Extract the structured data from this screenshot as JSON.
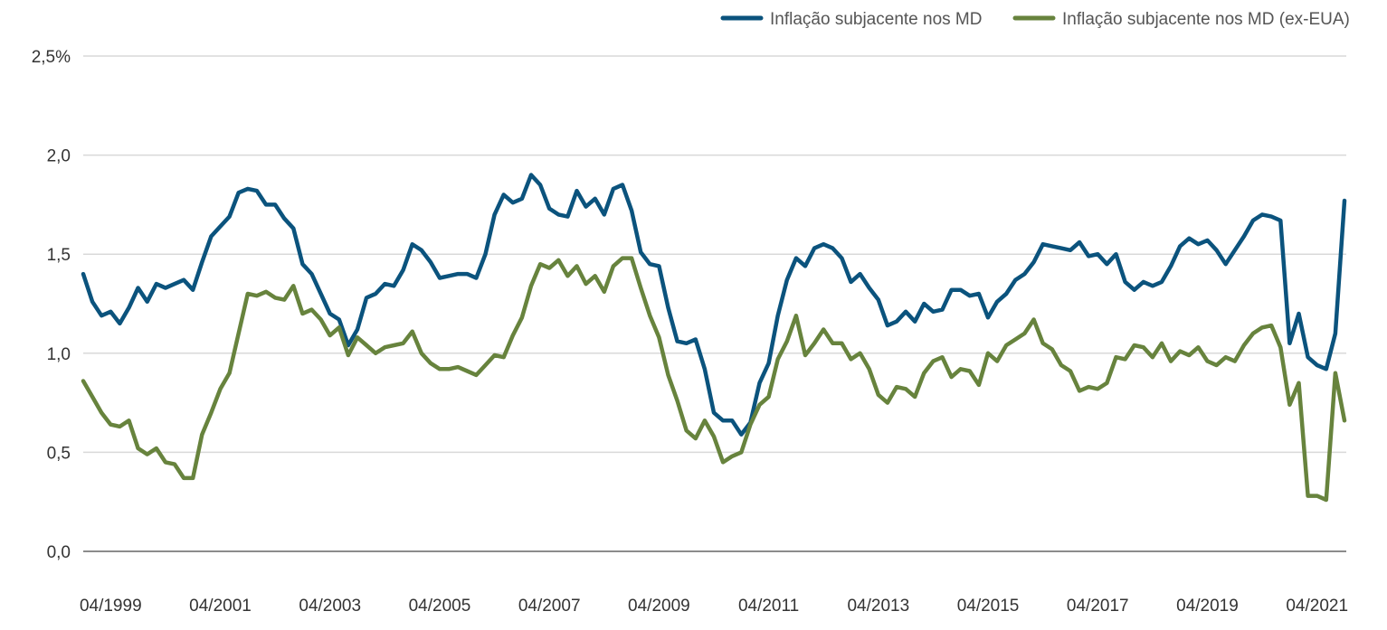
{
  "chart_data": {
    "type": "line",
    "title": "",
    "xlabel": "",
    "ylabel": "",
    "ylim": [
      0,
      2.5
    ],
    "y_ticks": [
      "0,0",
      "0,5",
      "1,0",
      "1,5",
      "2,0",
      "2,5%"
    ],
    "y_tick_values": [
      0,
      0.5,
      1.0,
      1.5,
      2.0,
      2.5
    ],
    "x_ticks": [
      "04/1999",
      "04/2001",
      "04/2003",
      "04/2005",
      "04/2007",
      "04/2009",
      "04/2011",
      "04/2013",
      "04/2015",
      "04/2017",
      "04/2019",
      "04/2021"
    ],
    "grid": true,
    "legend_position": "top-right",
    "x": [
      "10/1998",
      "12/1998",
      "02/1999",
      "04/1999",
      "06/1999",
      "08/1999",
      "10/1999",
      "12/1999",
      "02/2000",
      "04/2000",
      "06/2000",
      "08/2000",
      "10/2000",
      "12/2000",
      "02/2001",
      "04/2001",
      "06/2001",
      "08/2001",
      "10/2001",
      "12/2001",
      "02/2002",
      "04/2002",
      "06/2002",
      "08/2002",
      "10/2002",
      "12/2002",
      "02/2003",
      "04/2003",
      "06/2003",
      "08/2003",
      "10/2003",
      "12/2003",
      "02/2004",
      "04/2004",
      "06/2004",
      "08/2004",
      "10/2004",
      "12/2004",
      "02/2005",
      "04/2005",
      "06/2005",
      "08/2005",
      "10/2005",
      "12/2005",
      "02/2006",
      "04/2006",
      "06/2006",
      "08/2006",
      "10/2006",
      "12/2006",
      "02/2007",
      "04/2007",
      "06/2007",
      "08/2007",
      "10/2007",
      "12/2007",
      "02/2008",
      "04/2008",
      "06/2008",
      "08/2008",
      "10/2008",
      "12/2008",
      "02/2009",
      "04/2009",
      "06/2009",
      "08/2009",
      "10/2009",
      "12/2009",
      "02/2010",
      "04/2010",
      "06/2010",
      "08/2010",
      "10/2010",
      "12/2010",
      "02/2011",
      "04/2011",
      "06/2011",
      "08/2011",
      "10/2011",
      "12/2011",
      "02/2012",
      "04/2012",
      "06/2012",
      "08/2012",
      "10/2012",
      "12/2012",
      "02/2013",
      "04/2013",
      "06/2013",
      "08/2013",
      "10/2013",
      "12/2013",
      "02/2014",
      "04/2014",
      "06/2014",
      "08/2014",
      "10/2014",
      "12/2014",
      "02/2015",
      "04/2015",
      "06/2015",
      "08/2015",
      "10/2015",
      "12/2015",
      "02/2016",
      "04/2016",
      "06/2016",
      "08/2016",
      "10/2016",
      "12/2016",
      "02/2017",
      "04/2017",
      "06/2017",
      "08/2017",
      "10/2017",
      "12/2017",
      "02/2018",
      "04/2018",
      "06/2018",
      "08/2018",
      "10/2018",
      "12/2018",
      "02/2019",
      "04/2019",
      "06/2019",
      "08/2019",
      "10/2019",
      "12/2019",
      "02/2020",
      "04/2020",
      "06/2020",
      "08/2020",
      "10/2020",
      "12/2020",
      "02/2021",
      "04/2021",
      "06/2021",
      "08/2021",
      "10/2021"
    ],
    "series": [
      {
        "name": "Inflação subjacente nos MD",
        "color": "#0b537d",
        "values": [
          1.4,
          1.26,
          1.19,
          1.21,
          1.15,
          1.23,
          1.33,
          1.26,
          1.35,
          1.33,
          1.35,
          1.37,
          1.32,
          1.46,
          1.59,
          1.64,
          1.69,
          1.81,
          1.83,
          1.82,
          1.75,
          1.75,
          1.68,
          1.63,
          1.45,
          1.4,
          1.3,
          1.2,
          1.17,
          1.04,
          1.12,
          1.28,
          1.3,
          1.35,
          1.34,
          1.42,
          1.55,
          1.52,
          1.46,
          1.38,
          1.39,
          1.4,
          1.4,
          1.38,
          1.5,
          1.7,
          1.8,
          1.76,
          1.78,
          1.9,
          1.85,
          1.73,
          1.7,
          1.69,
          1.82,
          1.74,
          1.78,
          1.7,
          1.83,
          1.85,
          1.72,
          1.51,
          1.45,
          1.44,
          1.23,
          1.06,
          1.05,
          1.07,
          0.92,
          0.7,
          0.66,
          0.66,
          0.59,
          0.65,
          0.85,
          0.95,
          1.19,
          1.37,
          1.48,
          1.44,
          1.53,
          1.55,
          1.53,
          1.48,
          1.36,
          1.4,
          1.33,
          1.27,
          1.14,
          1.16,
          1.21,
          1.16,
          1.25,
          1.21,
          1.22,
          1.32,
          1.32,
          1.29,
          1.3,
          1.18,
          1.26,
          1.3,
          1.37,
          1.4,
          1.46,
          1.55,
          1.54,
          1.53,
          1.52,
          1.56,
          1.49,
          1.5,
          1.45,
          1.5,
          1.36,
          1.32,
          1.36,
          1.34,
          1.36,
          1.44,
          1.54,
          1.58,
          1.55,
          1.57,
          1.52,
          1.45,
          1.52,
          1.59,
          1.67,
          1.7,
          1.69,
          1.67,
          1.05,
          1.2,
          0.98,
          0.94,
          0.92,
          1.1,
          1.77
        ]
      },
      {
        "name": "Inflação subjacente nos MD (ex-EUA)",
        "color": "#67833d",
        "values": [
          0.86,
          0.78,
          0.7,
          0.64,
          0.63,
          0.66,
          0.52,
          0.49,
          0.52,
          0.45,
          0.44,
          0.37,
          0.37,
          0.59,
          0.7,
          0.82,
          0.9,
          1.1,
          1.3,
          1.29,
          1.31,
          1.28,
          1.27,
          1.34,
          1.2,
          1.22,
          1.17,
          1.09,
          1.13,
          0.99,
          1.08,
          1.04,
          1.0,
          1.03,
          1.04,
          1.05,
          1.11,
          1.0,
          0.95,
          0.92,
          0.92,
          0.93,
          0.91,
          0.89,
          0.94,
          0.99,
          0.98,
          1.09,
          1.18,
          1.34,
          1.45,
          1.43,
          1.47,
          1.39,
          1.44,
          1.35,
          1.39,
          1.31,
          1.44,
          1.48,
          1.48,
          1.33,
          1.19,
          1.08,
          0.89,
          0.76,
          0.61,
          0.57,
          0.66,
          0.58,
          0.45,
          0.48,
          0.5,
          0.64,
          0.74,
          0.78,
          0.97,
          1.06,
          1.19,
          0.99,
          1.05,
          1.12,
          1.05,
          1.05,
          0.97,
          1.0,
          0.92,
          0.79,
          0.75,
          0.83,
          0.82,
          0.78,
          0.9,
          0.96,
          0.98,
          0.88,
          0.92,
          0.91,
          0.84,
          1.0,
          0.96,
          1.04,
          1.07,
          1.1,
          1.17,
          1.05,
          1.02,
          0.94,
          0.91,
          0.81,
          0.83,
          0.82,
          0.85,
          0.98,
          0.97,
          1.04,
          1.03,
          0.98,
          1.05,
          0.96,
          1.01,
          0.99,
          1.03,
          0.96,
          0.94,
          0.98,
          0.96,
          1.04,
          1.1,
          1.13,
          1.14,
          1.03,
          0.74,
          0.85,
          0.28,
          0.28,
          0.26,
          0.9,
          0.66
        ]
      }
    ]
  }
}
